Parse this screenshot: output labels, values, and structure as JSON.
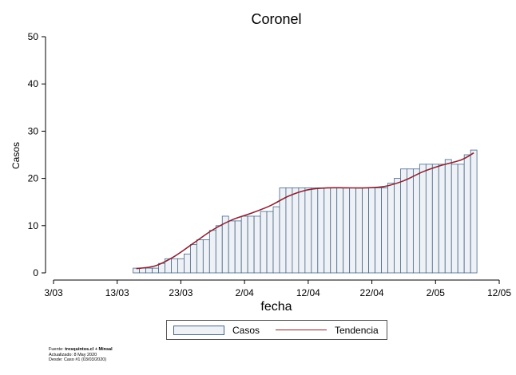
{
  "chart_data": {
    "type": "bar",
    "title": "Coronel",
    "xlabel": "fecha",
    "ylabel": "Casos",
    "ylim": [
      0,
      50
    ],
    "yticks": [
      0,
      10,
      20,
      30,
      40,
      50
    ],
    "xlim": [
      "2020-03-03",
      "2020-05-12"
    ],
    "xticks": [
      {
        "date": "2020-03-03",
        "label": "3/03"
      },
      {
        "date": "2020-03-13",
        "label": "13/03"
      },
      {
        "date": "2020-03-23",
        "label": "23/03"
      },
      {
        "date": "2020-04-02",
        "label": "2/04"
      },
      {
        "date": "2020-04-12",
        "label": "12/04"
      },
      {
        "date": "2020-04-22",
        "label": "22/04"
      },
      {
        "date": "2020-05-02",
        "label": "2/05"
      },
      {
        "date": "2020-05-12",
        "label": "12/05"
      }
    ],
    "grid": false,
    "legend_position": "bottom",
    "series": [
      {
        "name": "Casos",
        "type": "bar",
        "color": "#eef2f6",
        "edge_color": "#4a6587",
        "x": [
          "2020-03-16",
          "2020-03-17",
          "2020-03-18",
          "2020-03-19",
          "2020-03-20",
          "2020-03-21",
          "2020-03-22",
          "2020-03-23",
          "2020-03-24",
          "2020-03-25",
          "2020-03-26",
          "2020-03-27",
          "2020-03-28",
          "2020-03-29",
          "2020-03-30",
          "2020-03-31",
          "2020-04-01",
          "2020-04-02",
          "2020-04-03",
          "2020-04-04",
          "2020-04-05",
          "2020-04-06",
          "2020-04-07",
          "2020-04-08",
          "2020-04-09",
          "2020-04-10",
          "2020-04-11",
          "2020-04-12",
          "2020-04-13",
          "2020-04-14",
          "2020-04-15",
          "2020-04-16",
          "2020-04-17",
          "2020-04-18",
          "2020-04-19",
          "2020-04-20",
          "2020-04-21",
          "2020-04-22",
          "2020-04-23",
          "2020-04-24",
          "2020-04-25",
          "2020-04-26",
          "2020-04-27",
          "2020-04-28",
          "2020-04-29",
          "2020-04-30",
          "2020-05-01",
          "2020-05-02",
          "2020-05-03",
          "2020-05-04",
          "2020-05-05",
          "2020-05-06",
          "2020-05-07",
          "2020-05-08"
        ],
        "values": [
          1,
          1,
          1,
          1,
          2,
          3,
          3,
          3,
          4,
          6,
          7,
          7,
          9,
          10,
          12,
          11,
          11,
          12,
          12,
          12,
          13,
          13,
          14,
          18,
          18,
          18,
          18,
          18,
          18,
          18,
          18,
          18,
          18,
          18,
          18,
          18,
          18,
          18,
          18,
          18,
          19,
          20,
          22,
          22,
          22,
          23,
          23,
          23,
          23,
          24,
          23,
          23,
          25,
          26
        ]
      },
      {
        "name": "Tendencia",
        "type": "line",
        "color": "#8b2333",
        "x": [
          "2020-03-16",
          "2020-03-19",
          "2020-03-22",
          "2020-03-25",
          "2020-03-28",
          "2020-03-31",
          "2020-04-03",
          "2020-04-06",
          "2020-04-09",
          "2020-04-12",
          "2020-04-15",
          "2020-04-18",
          "2020-04-21",
          "2020-04-24",
          "2020-04-27",
          "2020-04-30",
          "2020-05-03",
          "2020-05-06",
          "2020-05-08"
        ],
        "values": [
          0.9,
          1.5,
          3.5,
          6.3,
          9.1,
          11.2,
          12.6,
          14.2,
          16.3,
          17.6,
          18.0,
          18.0,
          18.0,
          18.3,
          19.5,
          21.4,
          22.8,
          23.9,
          25.4
        ]
      }
    ]
  },
  "legend": {
    "bar_label": "Casos",
    "line_label": "Tendencia"
  },
  "footer": {
    "source_prefix": "Fuente: ",
    "source_bold": "tresquintos.cl + Minsal",
    "updated": "Actualizado: 8 May 2020",
    "since": "Desde: Caso #1  (03/03/2020)"
  }
}
